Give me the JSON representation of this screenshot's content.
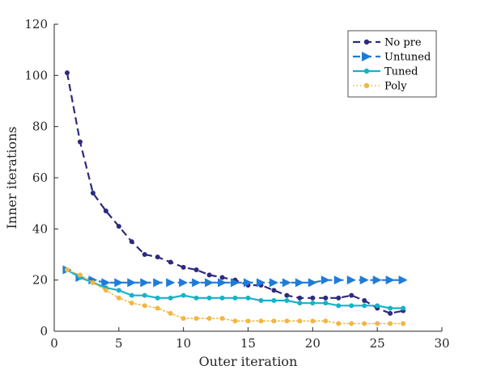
{
  "chart_data": {
    "type": "line",
    "xlabel": "Outer iteration",
    "ylabel": "Inner iterations",
    "xlim": [
      0,
      30
    ],
    "ylim": [
      0,
      120
    ],
    "xticks": [
      0,
      5,
      10,
      15,
      20,
      25,
      30
    ],
    "yticks": [
      0,
      20,
      40,
      60,
      80,
      100,
      120
    ],
    "grid": false,
    "legend_position": "top-right",
    "x": [
      1,
      2,
      3,
      4,
      5,
      6,
      7,
      8,
      9,
      10,
      11,
      12,
      13,
      14,
      15,
      16,
      17,
      18,
      19,
      20,
      21,
      22,
      23,
      24,
      25,
      26,
      27
    ],
    "series": [
      {
        "name": "No pre",
        "color": "#2e2a7e",
        "line_style": "dashed",
        "marker": "circle",
        "values": [
          101,
          74,
          54,
          47,
          41,
          35,
          30,
          29,
          27,
          25,
          24,
          22,
          21,
          20,
          18,
          18,
          16,
          14,
          13,
          13,
          13,
          13,
          14,
          12,
          9,
          7,
          8
        ]
      },
      {
        "name": "Untuned",
        "color": "#1f7bd8",
        "line_style": "dashed",
        "marker": "triangle-right",
        "values": [
          24,
          21,
          20,
          19,
          19,
          19,
          19,
          19,
          19,
          19,
          19,
          19,
          19,
          19,
          19,
          19,
          19,
          19,
          19,
          19,
          20,
          20,
          20,
          20,
          20,
          20,
          20
        ]
      },
      {
        "name": "Tuned",
        "color": "#17b2c9",
        "line_style": "solid",
        "marker": "circle",
        "values": [
          24,
          21,
          19,
          17,
          16,
          14,
          14,
          13,
          13,
          14,
          13,
          13,
          13,
          13,
          13,
          12,
          12,
          12,
          11,
          11,
          11,
          10,
          10,
          10,
          10,
          9,
          9
        ]
      },
      {
        "name": "Poly",
        "color": "#f2b743",
        "line_style": "dotted",
        "marker": "circle",
        "values": [
          24,
          22,
          19,
          16,
          13,
          11,
          10,
          9,
          7,
          5,
          5,
          5,
          5,
          4,
          4,
          4,
          4,
          4,
          4,
          4,
          4,
          3,
          3,
          3,
          3,
          3,
          3
        ]
      }
    ]
  }
}
